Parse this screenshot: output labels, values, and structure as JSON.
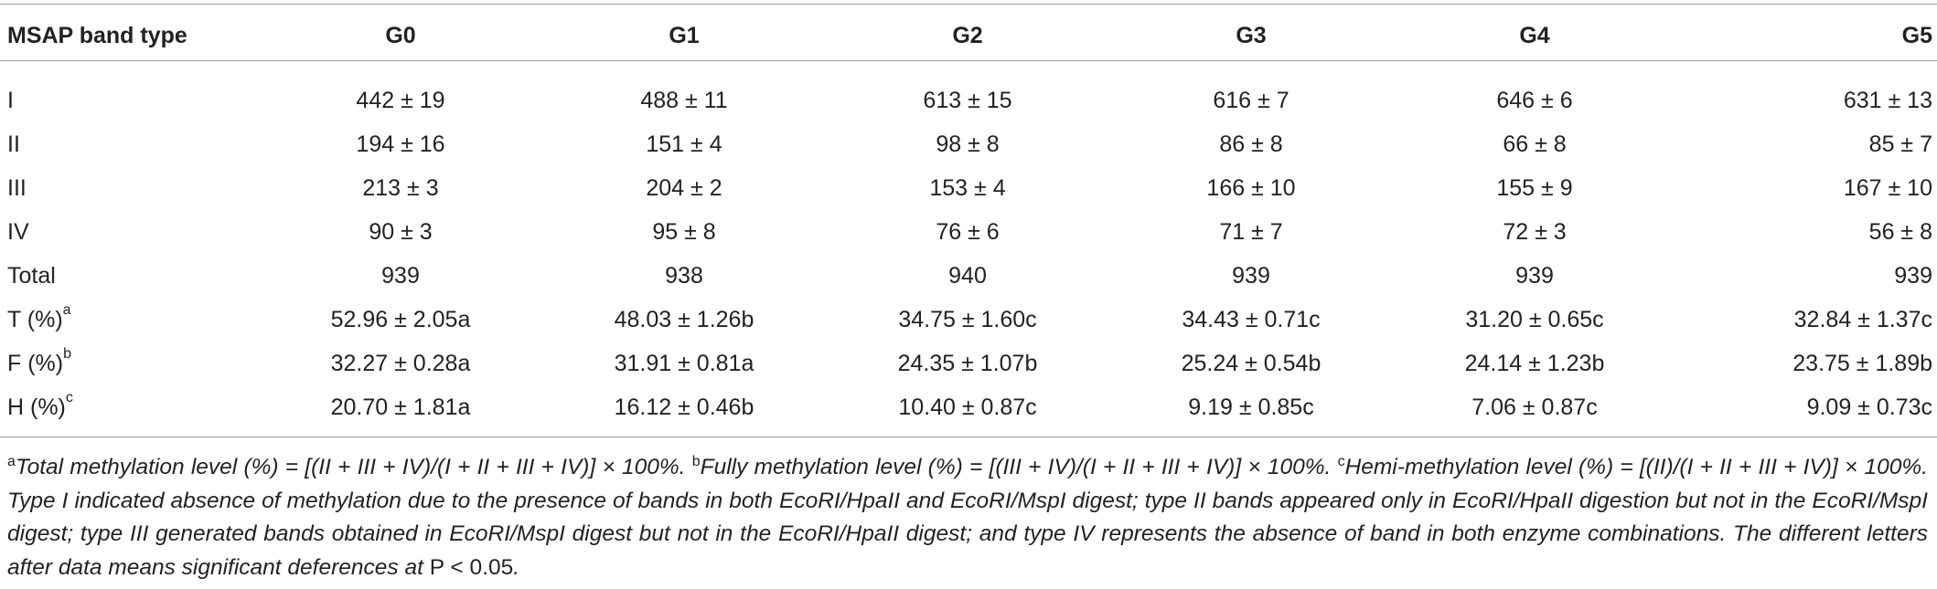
{
  "table": {
    "headers": [
      "MSAP band type",
      "G0",
      "G1",
      "G2",
      "G3",
      "G4",
      "G5"
    ],
    "rows": [
      {
        "label": "I",
        "sup": "",
        "values": [
          "442 ± 19",
          "488 ± 11",
          "613 ± 15",
          "616 ± 7",
          "646 ± 6",
          "631 ± 13"
        ]
      },
      {
        "label": "II",
        "sup": "",
        "values": [
          "194 ± 16",
          "151 ± 4",
          "98 ± 8",
          "86 ± 8",
          "66 ± 8",
          "85 ± 7"
        ]
      },
      {
        "label": "III",
        "sup": "",
        "values": [
          "213 ± 3",
          "204 ± 2",
          "153 ± 4",
          "166 ± 10",
          "155 ± 9",
          "167 ± 10"
        ]
      },
      {
        "label": "IV",
        "sup": "",
        "values": [
          "90 ± 3",
          "95 ± 8",
          "76 ± 6",
          "71 ± 7",
          "72 ± 3",
          "56 ± 8"
        ]
      },
      {
        "label": "Total",
        "sup": "",
        "values": [
          "939",
          "938",
          "940",
          "939",
          "939",
          "939"
        ]
      },
      {
        "label": "T (%)",
        "sup": "a",
        "values": [
          "52.96 ± 2.05a",
          "48.03 ± 1.26b",
          "34.75 ± 1.60c",
          "34.43 ± 0.71c",
          "31.20 ± 0.65c",
          "32.84 ± 1.37c"
        ]
      },
      {
        "label": "F (%)",
        "sup": "b",
        "values": [
          "32.27 ± 0.28a",
          "31.91 ± 0.81a",
          "24.35 ± 1.07b",
          "25.24 ± 0.54b",
          "24.14 ± 1.23b",
          "23.75 ± 1.89b"
        ]
      },
      {
        "label": "H (%)",
        "sup": "c",
        "values": [
          "20.70 ± 1.81a",
          "16.12 ± 0.46b",
          "10.40 ± 0.87c",
          "9.19 ± 0.85c",
          "7.06 ± 0.87c",
          "9.09 ± 0.73c"
        ]
      }
    ]
  },
  "footnote": {
    "a_mark": "a",
    "a_text": "Total methylation level (%) = [(II + III + IV)/(I + II + III + IV)] × 100%. ",
    "b_mark": "b",
    "b_text": "Fully methylation level (%) = [(III + IV)/(I + II + III + IV)] × 100%. ",
    "c_mark": "c",
    "c_text": "Hemi-methylation level (%) = [(II)/(I + II + III + IV)] × 100%. Type I indicated absence of methylation due to the presence of bands in both EcoRI/HpaII and EcoRI/MspI digest; type II bands appeared only in EcoRI/HpaII digestion but not in the EcoRI/MspI digest; type III generated bands obtained in EcoRI/MspI digest but not in the EcoRI/HpaII digest; and type IV represents the absence of band in both enzyme combinations. The different letters after data means significant deferences at ",
    "p_text": "P < 0.05",
    "end": "."
  }
}
